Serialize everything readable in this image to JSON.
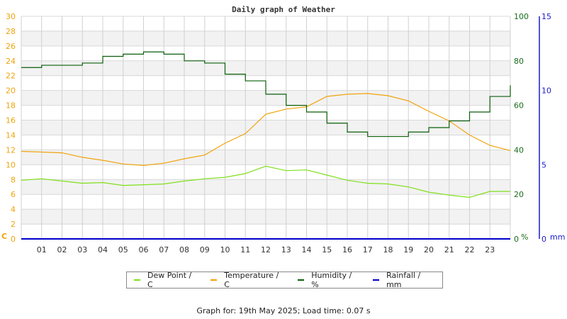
{
  "chart_data": {
    "type": "line",
    "title": "Daily graph of Weather",
    "x": [
      0,
      1,
      2,
      3,
      4,
      5,
      6,
      7,
      8,
      9,
      10,
      11,
      12,
      13,
      14,
      15,
      16,
      17,
      18,
      19,
      20,
      21,
      22,
      23,
      24
    ],
    "x_tick_labels": [
      "01",
      "02",
      "03",
      "04",
      "05",
      "06",
      "07",
      "08",
      "09",
      "10",
      "11",
      "12",
      "13",
      "14",
      "15",
      "16",
      "17",
      "18",
      "19",
      "20",
      "21",
      "22",
      "23"
    ],
    "xlabel": "",
    "grid": true,
    "axes": {
      "left": {
        "label": "C",
        "ticks": [
          0,
          2,
          4,
          6,
          8,
          10,
          12,
          14,
          16,
          18,
          20,
          22,
          24,
          26,
          28,
          30
        ],
        "range": [
          0,
          30
        ],
        "color": "#f0a30a"
      },
      "right1": {
        "label": "%",
        "ticks": [
          0,
          20,
          40,
          60,
          80,
          100
        ],
        "range": [
          0,
          100
        ],
        "color": "#1a6e1a"
      },
      "right2": {
        "label": "mm",
        "ticks": [
          0,
          5,
          10,
          15
        ],
        "range": [
          0,
          15
        ],
        "color": "#1a1acd"
      }
    },
    "series": [
      {
        "name": "Dew Point / C",
        "axis": "left",
        "color": "#7fe01a",
        "values": [
          7.9,
          8.1,
          7.8,
          7.5,
          7.6,
          7.2,
          7.3,
          7.4,
          7.8,
          8.1,
          8.3,
          8.8,
          9.8,
          9.2,
          9.3,
          8.6,
          7.9,
          7.5,
          7.4,
          7.0,
          6.3,
          5.9,
          5.6,
          6.4,
          6.4
        ]
      },
      {
        "name": "Temperature / C",
        "axis": "left",
        "color": "#f0a30a",
        "values": [
          11.8,
          11.7,
          11.6,
          11.0,
          10.6,
          10.1,
          9.9,
          10.2,
          10.8,
          11.3,
          12.9,
          14.2,
          16.8,
          17.5,
          17.8,
          19.2,
          19.5,
          19.6,
          19.3,
          18.6,
          17.2,
          15.9,
          14.0,
          12.6,
          11.9
        ]
      },
      {
        "name": "Humidity / %",
        "axis": "right1",
        "color": "#0b5e0b",
        "values": [
          77,
          78,
          78,
          79,
          82,
          83,
          84,
          83,
          80,
          79,
          74,
          71,
          65,
          60,
          57,
          52,
          48,
          46,
          46,
          48,
          50,
          53,
          57,
          64,
          69
        ]
      },
      {
        "name": "Rainfall / mm",
        "axis": "right2",
        "color": "#0000cc",
        "values": [
          0,
          0,
          0,
          0,
          0,
          0,
          0,
          0,
          0,
          0,
          0,
          0,
          0,
          0,
          0,
          0,
          0,
          0,
          0,
          0,
          0,
          0,
          0,
          0,
          0
        ]
      }
    ],
    "legend_position": "bottom"
  },
  "legend": {
    "items": [
      {
        "label": "Dew Point / C",
        "color": "#7fe01a"
      },
      {
        "label": "Temperature / C",
        "color": "#f0a30a"
      },
      {
        "label": "Humidity / %",
        "color": "#0b5e0b"
      },
      {
        "label": "Rainfall / mm",
        "color": "#0000cc"
      }
    ]
  },
  "footer": {
    "text": "Graph for: 19th May 2025; Load time: 0.07 s"
  }
}
